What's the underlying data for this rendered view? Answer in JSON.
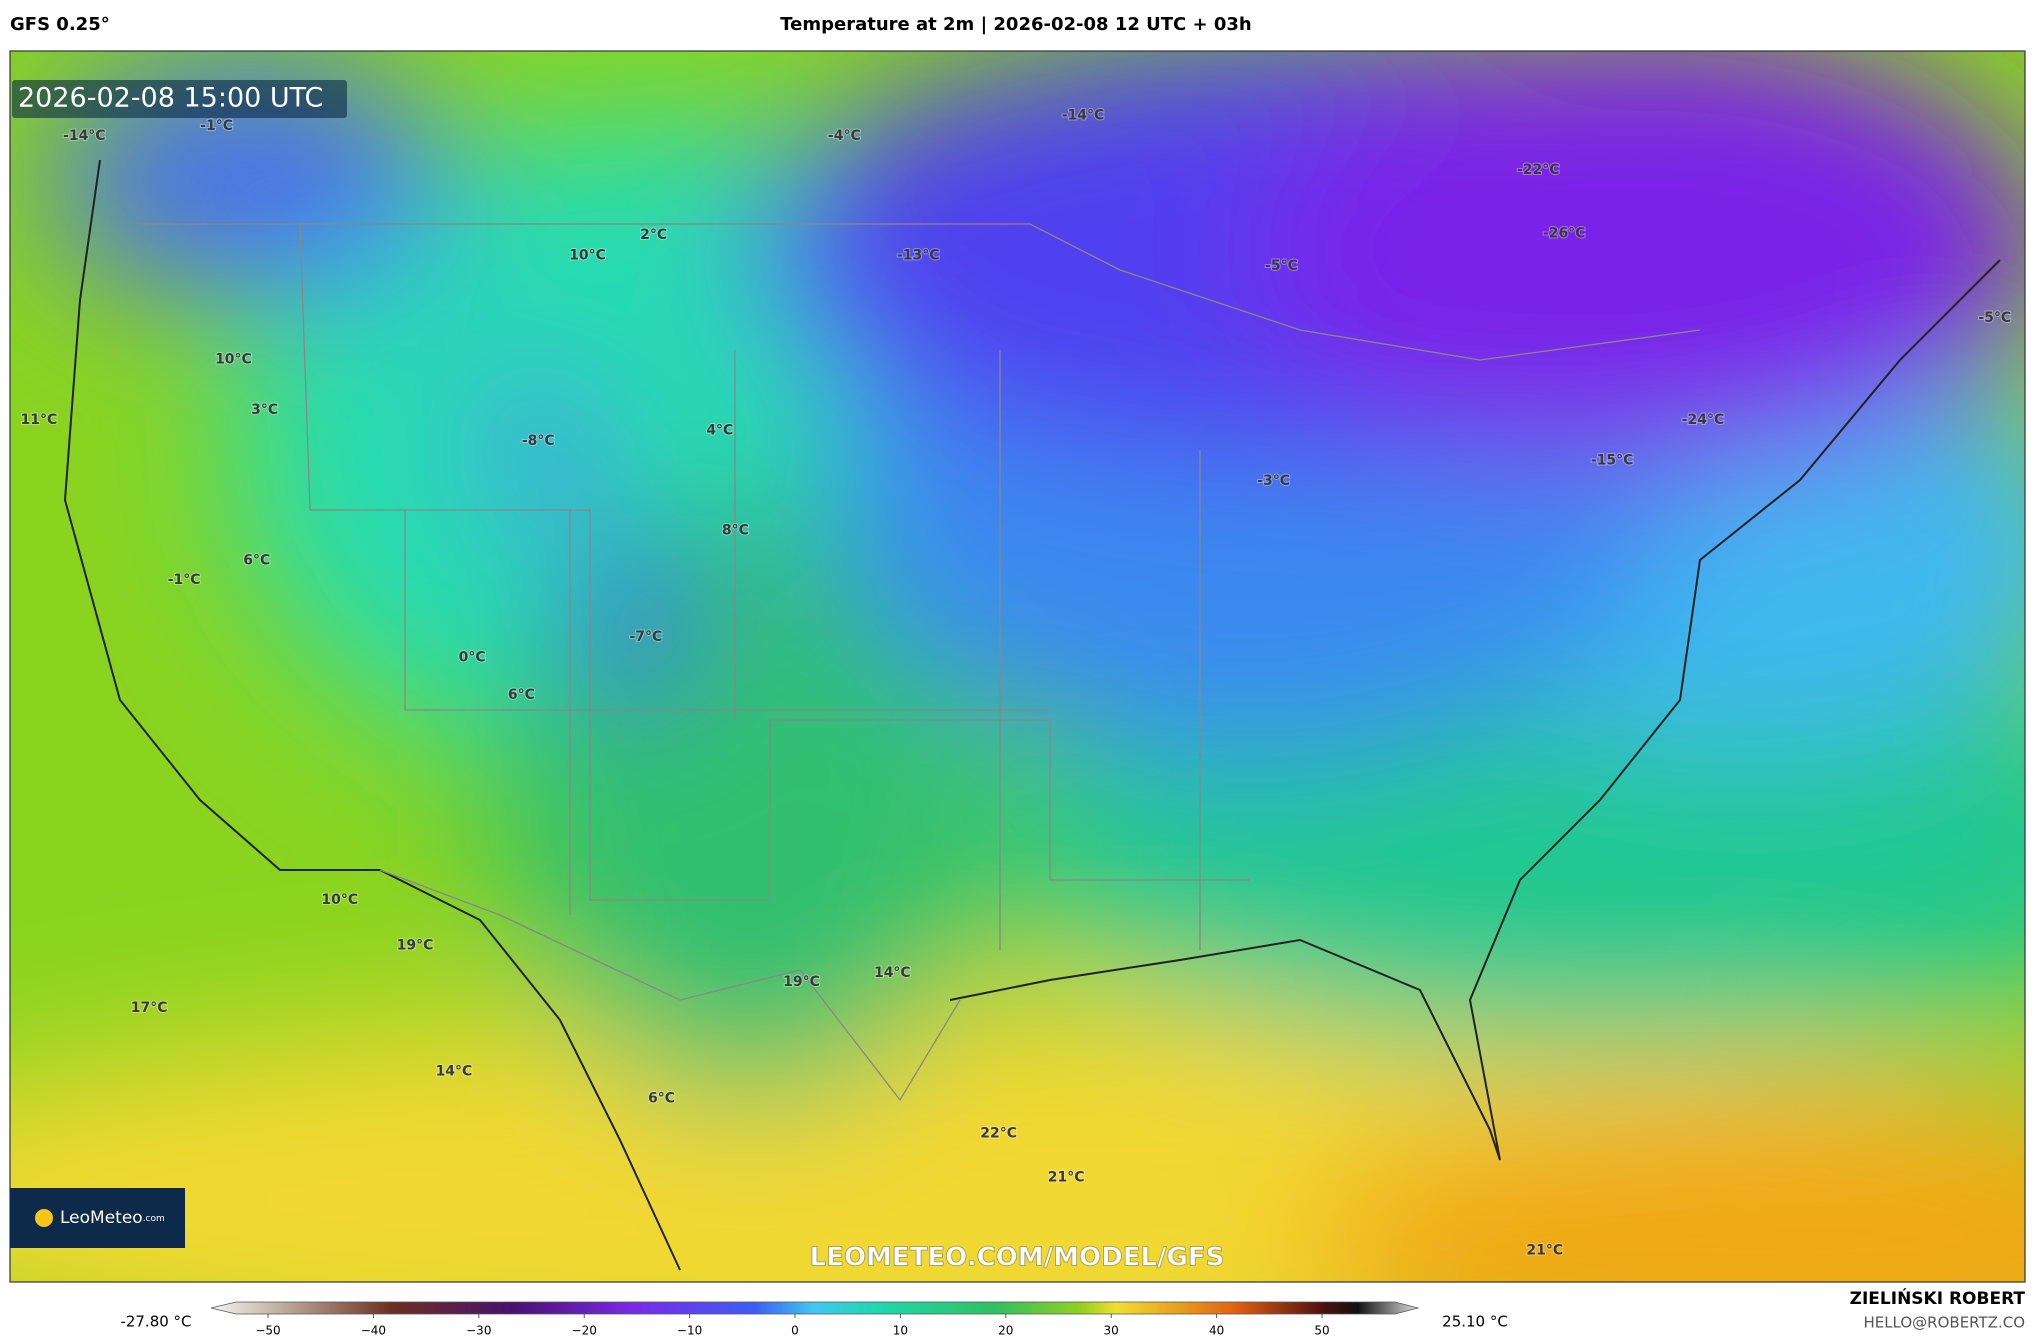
{
  "header": {
    "model": "GFS 0.25°",
    "title": "Temperature at 2m | 2026-02-08 12 UTC + 03h"
  },
  "timestamp": "2026-02-08 15:00 UTC",
  "labels": [
    "-14°C",
    "-1°C",
    "-4°C",
    "-14°C",
    "-22°C",
    "-26°C",
    "-5°C",
    "2°C",
    "10°C",
    "-13°C",
    "-5°C",
    "10°C",
    "11°C",
    "3°C",
    "-8°C",
    "4°C",
    "-24°C",
    "-15°C",
    "-3°C",
    "8°C",
    "6°C",
    "-1°C",
    "-7°C",
    "0°C",
    "6°C",
    "10°C",
    "19°C",
    "14°C",
    "19°C",
    "17°C",
    "14°C",
    "6°C",
    "22°C",
    "21°C",
    "21°C"
  ],
  "logo": {
    "name": "LeoMeteo",
    "suffix": ".com"
  },
  "watermark": "LEOMETEO.COM/MODEL/GFS",
  "colorbar": {
    "min_label": "-27.80 °C",
    "max_label": "25.10 °C",
    "ticks": [
      "−50",
      "−40",
      "−30",
      "−20",
      "−10",
      "0",
      "10",
      "20",
      "30",
      "40",
      "50"
    ]
  },
  "footer": {
    "author": "ZIELIŃSKI ROBERT",
    "email": "HELLO@ROBERTZ.CO"
  }
}
